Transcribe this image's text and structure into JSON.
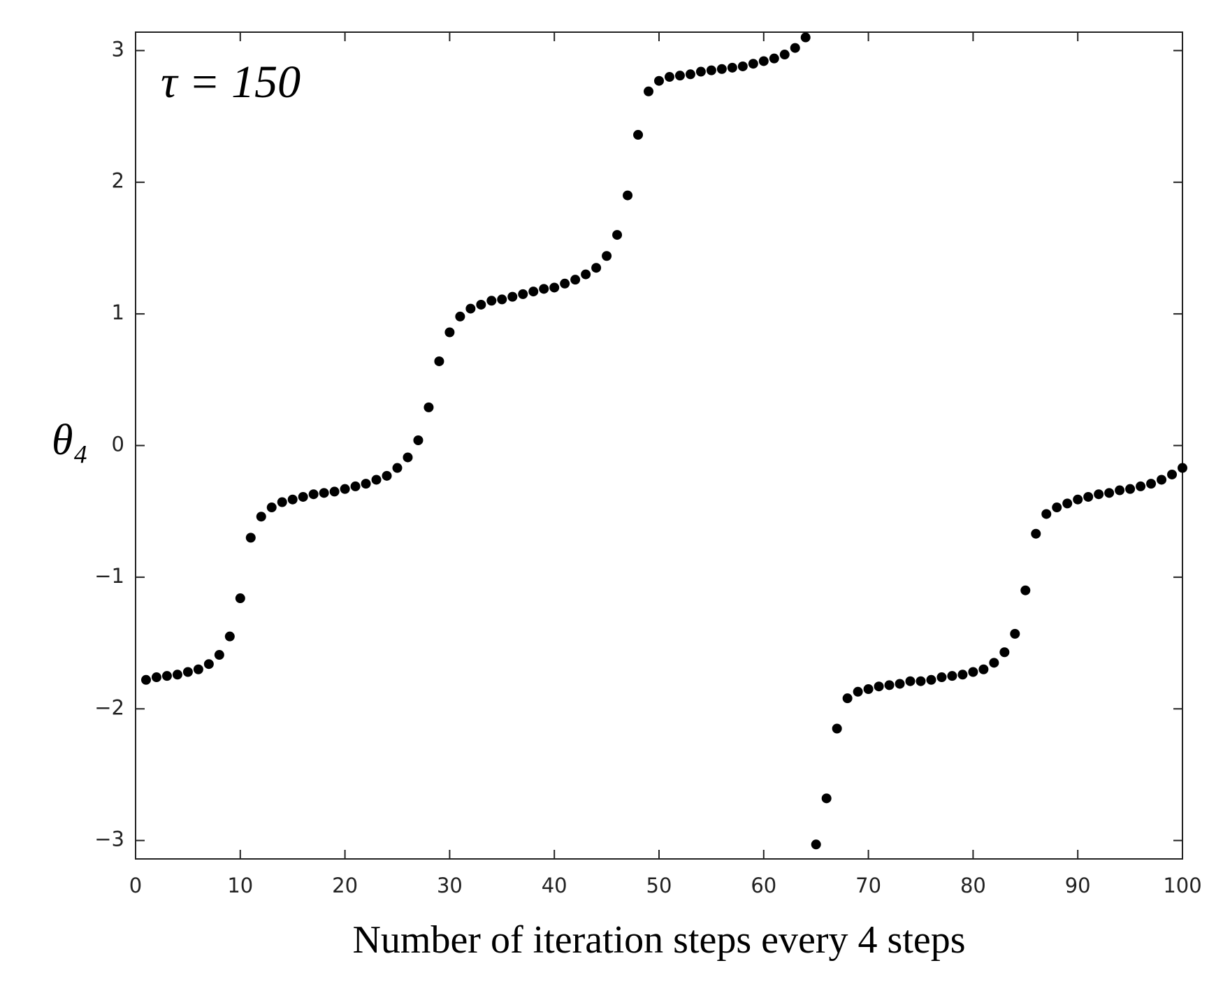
{
  "chart_data": {
    "type": "scatter",
    "annotation": "τ = 150",
    "y_label": "θ₄",
    "x_label": "Number of iteration steps every 4 steps",
    "color": "#000000",
    "xlim": [
      0,
      100
    ],
    "ylim": [
      -3.14,
      3.14
    ],
    "xticks": [
      0,
      10,
      20,
      30,
      40,
      50,
      60,
      70,
      80,
      90,
      100
    ],
    "yticks": [
      {
        "value": -3,
        "label": "−3"
      },
      {
        "value": -2,
        "label": "−2"
      },
      {
        "value": -1,
        "label": "−1"
      },
      0,
      1,
      2,
      3
    ],
    "x": [
      1,
      2,
      3,
      4,
      5,
      6,
      7,
      8,
      9,
      10,
      11,
      12,
      13,
      14,
      15,
      16,
      17,
      18,
      19,
      20,
      21,
      22,
      23,
      24,
      25,
      26,
      27,
      28,
      29,
      30,
      31,
      32,
      33,
      34,
      35,
      36,
      37,
      38,
      39,
      40,
      41,
      42,
      43,
      44,
      45,
      46,
      47,
      48,
      49,
      50,
      51,
      52,
      53,
      54,
      55,
      56,
      57,
      58,
      59,
      60,
      61,
      62,
      63,
      64,
      65,
      66,
      67,
      68,
      69,
      70,
      71,
      72,
      73,
      74,
      75,
      76,
      77,
      78,
      79,
      80,
      81,
      82,
      83,
      84,
      85,
      86,
      87,
      88,
      89,
      90,
      91,
      92,
      93,
      94,
      95,
      96,
      97,
      98,
      99,
      100
    ],
    "values": [
      -1.78,
      -1.76,
      -1.75,
      -1.74,
      -1.72,
      -1.7,
      -1.66,
      -1.59,
      -1.45,
      -1.16,
      -0.7,
      -0.54,
      -0.47,
      -0.43,
      -0.41,
      -0.39,
      -0.37,
      -0.36,
      -0.35,
      -0.33,
      -0.31,
      -0.29,
      -0.26,
      -0.23,
      -0.17,
      -0.09,
      0.04,
      0.29,
      0.64,
      0.86,
      0.98,
      1.04,
      1.07,
      1.1,
      1.11,
      1.13,
      1.15,
      1.17,
      1.19,
      1.2,
      1.23,
      1.26,
      1.3,
      1.35,
      1.44,
      1.6,
      1.9,
      2.36,
      2.69,
      2.77,
      2.8,
      2.81,
      2.82,
      2.84,
      2.85,
      2.86,
      2.87,
      2.88,
      2.9,
      2.92,
      2.94,
      2.97,
      3.02,
      3.1,
      -3.03,
      -2.68,
      -2.15,
      -1.92,
      -1.87,
      -1.85,
      -1.83,
      -1.82,
      -1.81,
      -1.79,
      -1.79,
      -1.78,
      -1.76,
      -1.75,
      -1.74,
      -1.72,
      -1.7,
      -1.65,
      -1.57,
      -1.43,
      -1.1,
      -0.67,
      -0.52,
      -0.47,
      -0.44,
      -0.41,
      -0.39,
      -0.37,
      -0.36,
      -0.34,
      -0.33,
      -0.31,
      -0.29,
      -0.26,
      -0.22,
      -0.17
    ]
  }
}
